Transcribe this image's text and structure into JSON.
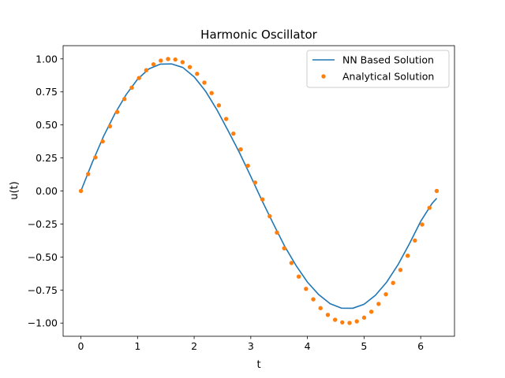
{
  "chart_data": {
    "type": "line",
    "title": "Harmonic Oscillator",
    "xlabel": "t",
    "ylabel": "u(t)",
    "xlim": [
      -0.314,
      6.597
    ],
    "ylim": [
      -1.1,
      1.1
    ],
    "xticks": [
      0,
      1,
      2,
      3,
      4,
      5,
      6
    ],
    "yticks": [
      -1.0,
      -0.75,
      -0.5,
      -0.25,
      0.0,
      0.25,
      0.5,
      0.75,
      1.0
    ],
    "ytick_labels": [
      "−1.00",
      "−0.75",
      "−0.50",
      "−0.25",
      "0.00",
      "0.25",
      "0.50",
      "0.75",
      "1.00"
    ],
    "grid": false,
    "legend_position": "top-right",
    "series": [
      {
        "name": "NN Based Solution",
        "kind": "line",
        "color": "#1f77b4",
        "x": [
          0,
          0.2,
          0.4,
          0.6,
          0.8,
          1.0,
          1.2,
          1.4,
          1.6,
          1.8,
          2.0,
          2.2,
          2.4,
          2.6,
          2.8,
          3.0,
          3.2,
          3.4,
          3.6,
          3.8,
          4.0,
          4.2,
          4.4,
          4.6,
          4.8,
          5.0,
          5.2,
          5.4,
          5.6,
          5.8,
          6.0,
          6.2,
          6.283
        ],
        "y": [
          0.0,
          0.215,
          0.414,
          0.585,
          0.73,
          0.846,
          0.924,
          0.96,
          0.962,
          0.935,
          0.864,
          0.756,
          0.616,
          0.455,
          0.29,
          0.11,
          -0.075,
          -0.25,
          -0.42,
          -0.565,
          -0.69,
          -0.785,
          -0.853,
          -0.887,
          -0.888,
          -0.858,
          -0.79,
          -0.69,
          -0.558,
          -0.4,
          -0.23,
          -0.095,
          -0.055
        ]
      },
      {
        "name": "Analytical Solution",
        "kind": "scatter",
        "color": "#ff7f0e",
        "x": [
          0.0,
          0.128,
          0.256,
          0.385,
          0.513,
          0.641,
          0.769,
          0.898,
          1.026,
          1.154,
          1.282,
          1.411,
          1.539,
          1.667,
          1.795,
          1.923,
          2.052,
          2.18,
          2.308,
          2.436,
          2.565,
          2.693,
          2.821,
          2.949,
          3.077,
          3.206,
          3.334,
          3.462,
          3.59,
          3.718,
          3.847,
          3.975,
          4.103,
          4.231,
          4.36,
          4.488,
          4.616,
          4.744,
          4.872,
          5.001,
          5.129,
          5.257,
          5.385,
          5.513,
          5.642,
          5.77,
          5.898,
          6.026,
          6.155,
          6.283
        ],
        "y": [
          0.0,
          0.128,
          0.254,
          0.375,
          0.49,
          0.598,
          0.696,
          0.782,
          0.855,
          0.914,
          0.959,
          0.987,
          0.999,
          0.995,
          0.975,
          0.938,
          0.887,
          0.82,
          0.741,
          0.648,
          0.545,
          0.434,
          0.315,
          0.191,
          0.064,
          -0.064,
          -0.191,
          -0.315,
          -0.434,
          -0.545,
          -0.648,
          -0.741,
          -0.82,
          -0.887,
          -0.938,
          -0.975,
          -0.995,
          -0.999,
          -0.987,
          -0.959,
          -0.914,
          -0.855,
          -0.782,
          -0.696,
          -0.598,
          -0.49,
          -0.375,
          -0.254,
          -0.128,
          0.0
        ]
      }
    ]
  }
}
